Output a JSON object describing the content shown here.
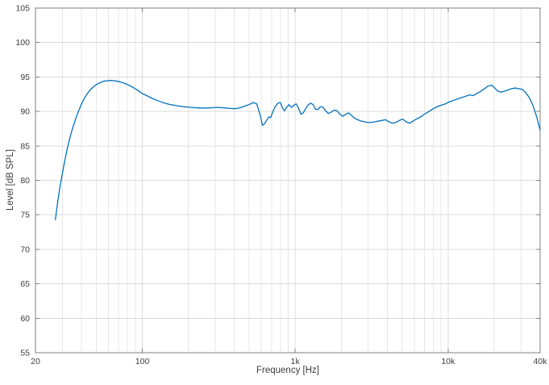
{
  "chart_data": {
    "type": "line",
    "title": "",
    "xlabel": "Frequency [Hz]",
    "ylabel": "Level [dB SPL]",
    "x_scale": "log",
    "xlim": [
      20,
      40000
    ],
    "ylim": [
      55,
      105
    ],
    "grid": true,
    "legend": "none",
    "x_ticks": {
      "values": [
        20,
        100,
        1000,
        10000,
        40000
      ],
      "labels": [
        "20",
        "100",
        "1k",
        "10k",
        "40k"
      ]
    },
    "x_minor_gridlines": [
      30,
      40,
      50,
      60,
      70,
      80,
      90,
      200,
      300,
      400,
      500,
      600,
      700,
      800,
      900,
      2000,
      3000,
      4000,
      5000,
      6000,
      7000,
      8000,
      9000,
      20000,
      30000
    ],
    "y_ticks": {
      "values": [
        55,
        60,
        65,
        70,
        75,
        80,
        85,
        90,
        95,
        100,
        105
      ],
      "labels": [
        "55",
        "60",
        "65",
        "70",
        "75",
        "80",
        "85",
        "90",
        "95",
        "100",
        "105"
      ]
    },
    "line_color": "#0072BD",
    "grid_color": "#dcdcdc",
    "minor_grid_color": "#e7e7e7",
    "axis_color": "#7f7f7f",
    "tick_label_color": "#3c3c3c",
    "series": [
      {
        "name": "frequency-response",
        "points": [
          [
            27,
            74.3
          ],
          [
            28,
            77.0
          ],
          [
            29,
            79.2
          ],
          [
            30,
            81.0
          ],
          [
            31,
            82.7
          ],
          [
            32,
            84.2
          ],
          [
            33,
            85.5
          ],
          [
            34,
            86.6
          ],
          [
            35,
            87.6
          ],
          [
            36,
            88.4
          ],
          [
            37,
            89.2
          ],
          [
            38,
            89.9
          ],
          [
            39,
            90.5
          ],
          [
            40,
            91.1
          ],
          [
            42,
            92.0
          ],
          [
            44,
            92.7
          ],
          [
            46,
            93.2
          ],
          [
            48,
            93.6
          ],
          [
            50,
            93.9
          ],
          [
            52,
            94.1
          ],
          [
            55,
            94.35
          ],
          [
            58,
            94.45
          ],
          [
            62,
            94.5
          ],
          [
            66,
            94.45
          ],
          [
            70,
            94.35
          ],
          [
            75,
            94.15
          ],
          [
            80,
            93.9
          ],
          [
            85,
            93.6
          ],
          [
            90,
            93.3
          ],
          [
            95,
            92.95
          ],
          [
            100,
            92.6
          ],
          [
            108,
            92.25
          ],
          [
            116,
            91.9
          ],
          [
            125,
            91.6
          ],
          [
            134,
            91.35
          ],
          [
            143,
            91.15
          ],
          [
            152,
            91.0
          ],
          [
            162,
            90.9
          ],
          [
            172,
            90.8
          ],
          [
            183,
            90.7
          ],
          [
            195,
            90.65
          ],
          [
            208,
            90.6
          ],
          [
            222,
            90.55
          ],
          [
            237,
            90.5
          ],
          [
            253,
            90.5
          ],
          [
            270,
            90.5
          ],
          [
            288,
            90.55
          ],
          [
            307,
            90.6
          ],
          [
            328,
            90.55
          ],
          [
            350,
            90.5
          ],
          [
            373,
            90.45
          ],
          [
            398,
            90.4
          ],
          [
            420,
            90.45
          ],
          [
            445,
            90.6
          ],
          [
            470,
            90.8
          ],
          [
            500,
            91.0
          ],
          [
            530,
            91.3
          ],
          [
            560,
            91.1
          ],
          [
            590,
            89.5
          ],
          [
            610,
            88.0
          ],
          [
            630,
            88.2
          ],
          [
            650,
            88.7
          ],
          [
            670,
            89.2
          ],
          [
            690,
            89.1
          ],
          [
            715,
            90.0
          ],
          [
            740,
            90.7
          ],
          [
            770,
            91.2
          ],
          [
            800,
            91.3
          ],
          [
            825,
            90.5
          ],
          [
            850,
            90.1
          ],
          [
            880,
            90.6
          ],
          [
            910,
            91.0
          ],
          [
            945,
            90.6
          ],
          [
            980,
            90.9
          ],
          [
            1015,
            91.1
          ],
          [
            1050,
            90.5
          ],
          [
            1090,
            89.6
          ],
          [
            1130,
            89.8
          ],
          [
            1170,
            90.4
          ],
          [
            1210,
            90.9
          ],
          [
            1260,
            91.2
          ],
          [
            1310,
            91.0
          ],
          [
            1360,
            90.3
          ],
          [
            1410,
            90.3
          ],
          [
            1460,
            90.7
          ],
          [
            1520,
            90.6
          ],
          [
            1580,
            90.1
          ],
          [
            1650,
            89.7
          ],
          [
            1720,
            89.9
          ],
          [
            1800,
            90.2
          ],
          [
            1880,
            90.1
          ],
          [
            1960,
            89.6
          ],
          [
            2050,
            89.3
          ],
          [
            2140,
            89.6
          ],
          [
            2240,
            89.8
          ],
          [
            2340,
            89.4
          ],
          [
            2450,
            89.0
          ],
          [
            2570,
            88.8
          ],
          [
            2700,
            88.6
          ],
          [
            2840,
            88.5
          ],
          [
            2990,
            88.4
          ],
          [
            3150,
            88.4
          ],
          [
            3320,
            88.5
          ],
          [
            3500,
            88.6
          ],
          [
            3700,
            88.7
          ],
          [
            3900,
            88.8
          ],
          [
            4100,
            88.5
          ],
          [
            4300,
            88.3
          ],
          [
            4550,
            88.4
          ],
          [
            4800,
            88.7
          ],
          [
            5050,
            88.9
          ],
          [
            5300,
            88.5
          ],
          [
            5600,
            88.3
          ],
          [
            5900,
            88.6
          ],
          [
            6200,
            88.9
          ],
          [
            6600,
            89.2
          ],
          [
            7000,
            89.6
          ],
          [
            7500,
            90.0
          ],
          [
            8000,
            90.4
          ],
          [
            8500,
            90.7
          ],
          [
            9000,
            90.9
          ],
          [
            9600,
            91.1
          ],
          [
            10200,
            91.4
          ],
          [
            10800,
            91.6
          ],
          [
            11500,
            91.8
          ],
          [
            12200,
            92.0
          ],
          [
            13000,
            92.2
          ],
          [
            13800,
            92.4
          ],
          [
            14600,
            92.3
          ],
          [
            15400,
            92.6
          ],
          [
            16300,
            92.9
          ],
          [
            17300,
            93.3
          ],
          [
            18300,
            93.7
          ],
          [
            19300,
            93.8
          ],
          [
            20000,
            93.5
          ],
          [
            21000,
            93.0
          ],
          [
            22000,
            92.8
          ],
          [
            23000,
            92.9
          ],
          [
            24500,
            93.1
          ],
          [
            26000,
            93.3
          ],
          [
            27500,
            93.4
          ],
          [
            29000,
            93.3
          ],
          [
            30500,
            93.2
          ],
          [
            32000,
            92.8
          ],
          [
            34000,
            92.0
          ],
          [
            36000,
            90.8
          ],
          [
            38000,
            89.2
          ],
          [
            40000,
            87.3
          ]
        ]
      }
    ]
  }
}
